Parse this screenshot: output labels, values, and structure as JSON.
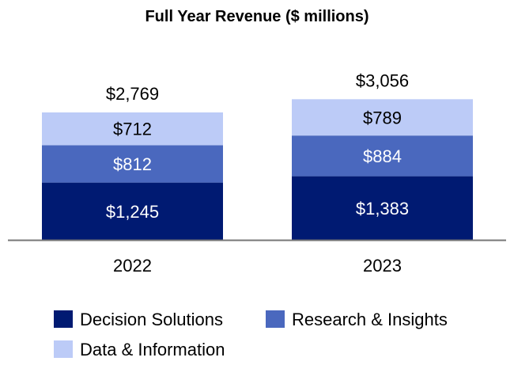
{
  "chart_data": {
    "type": "bar",
    "stacked": true,
    "title": "Full Year Revenue ($ millions)",
    "xlabel": "",
    "ylabel": "",
    "categories": [
      "2022",
      "2023"
    ],
    "series": [
      {
        "name": "Decision Solutions",
        "values": [
          1245,
          1383
        ],
        "labels": [
          "$1,245",
          "$1,383"
        ],
        "color": "#001a72",
        "label_color": "#ffffff"
      },
      {
        "name": "Research & Insights",
        "values": [
          812,
          884
        ],
        "labels": [
          "$812",
          "$884"
        ],
        "color": "#4a68be",
        "label_color": "#ffffff"
      },
      {
        "name": "Data & Information",
        "values": [
          712,
          789
        ],
        "labels": [
          "$712",
          "$789"
        ],
        "color": "#bccbf7",
        "label_color": "#000000"
      }
    ],
    "totals": [
      2769,
      3056
    ],
    "total_labels": [
      "$2,769",
      "$3,056"
    ],
    "ylim": [
      0,
      3200
    ],
    "grid": false,
    "legend_position": "bottom"
  }
}
